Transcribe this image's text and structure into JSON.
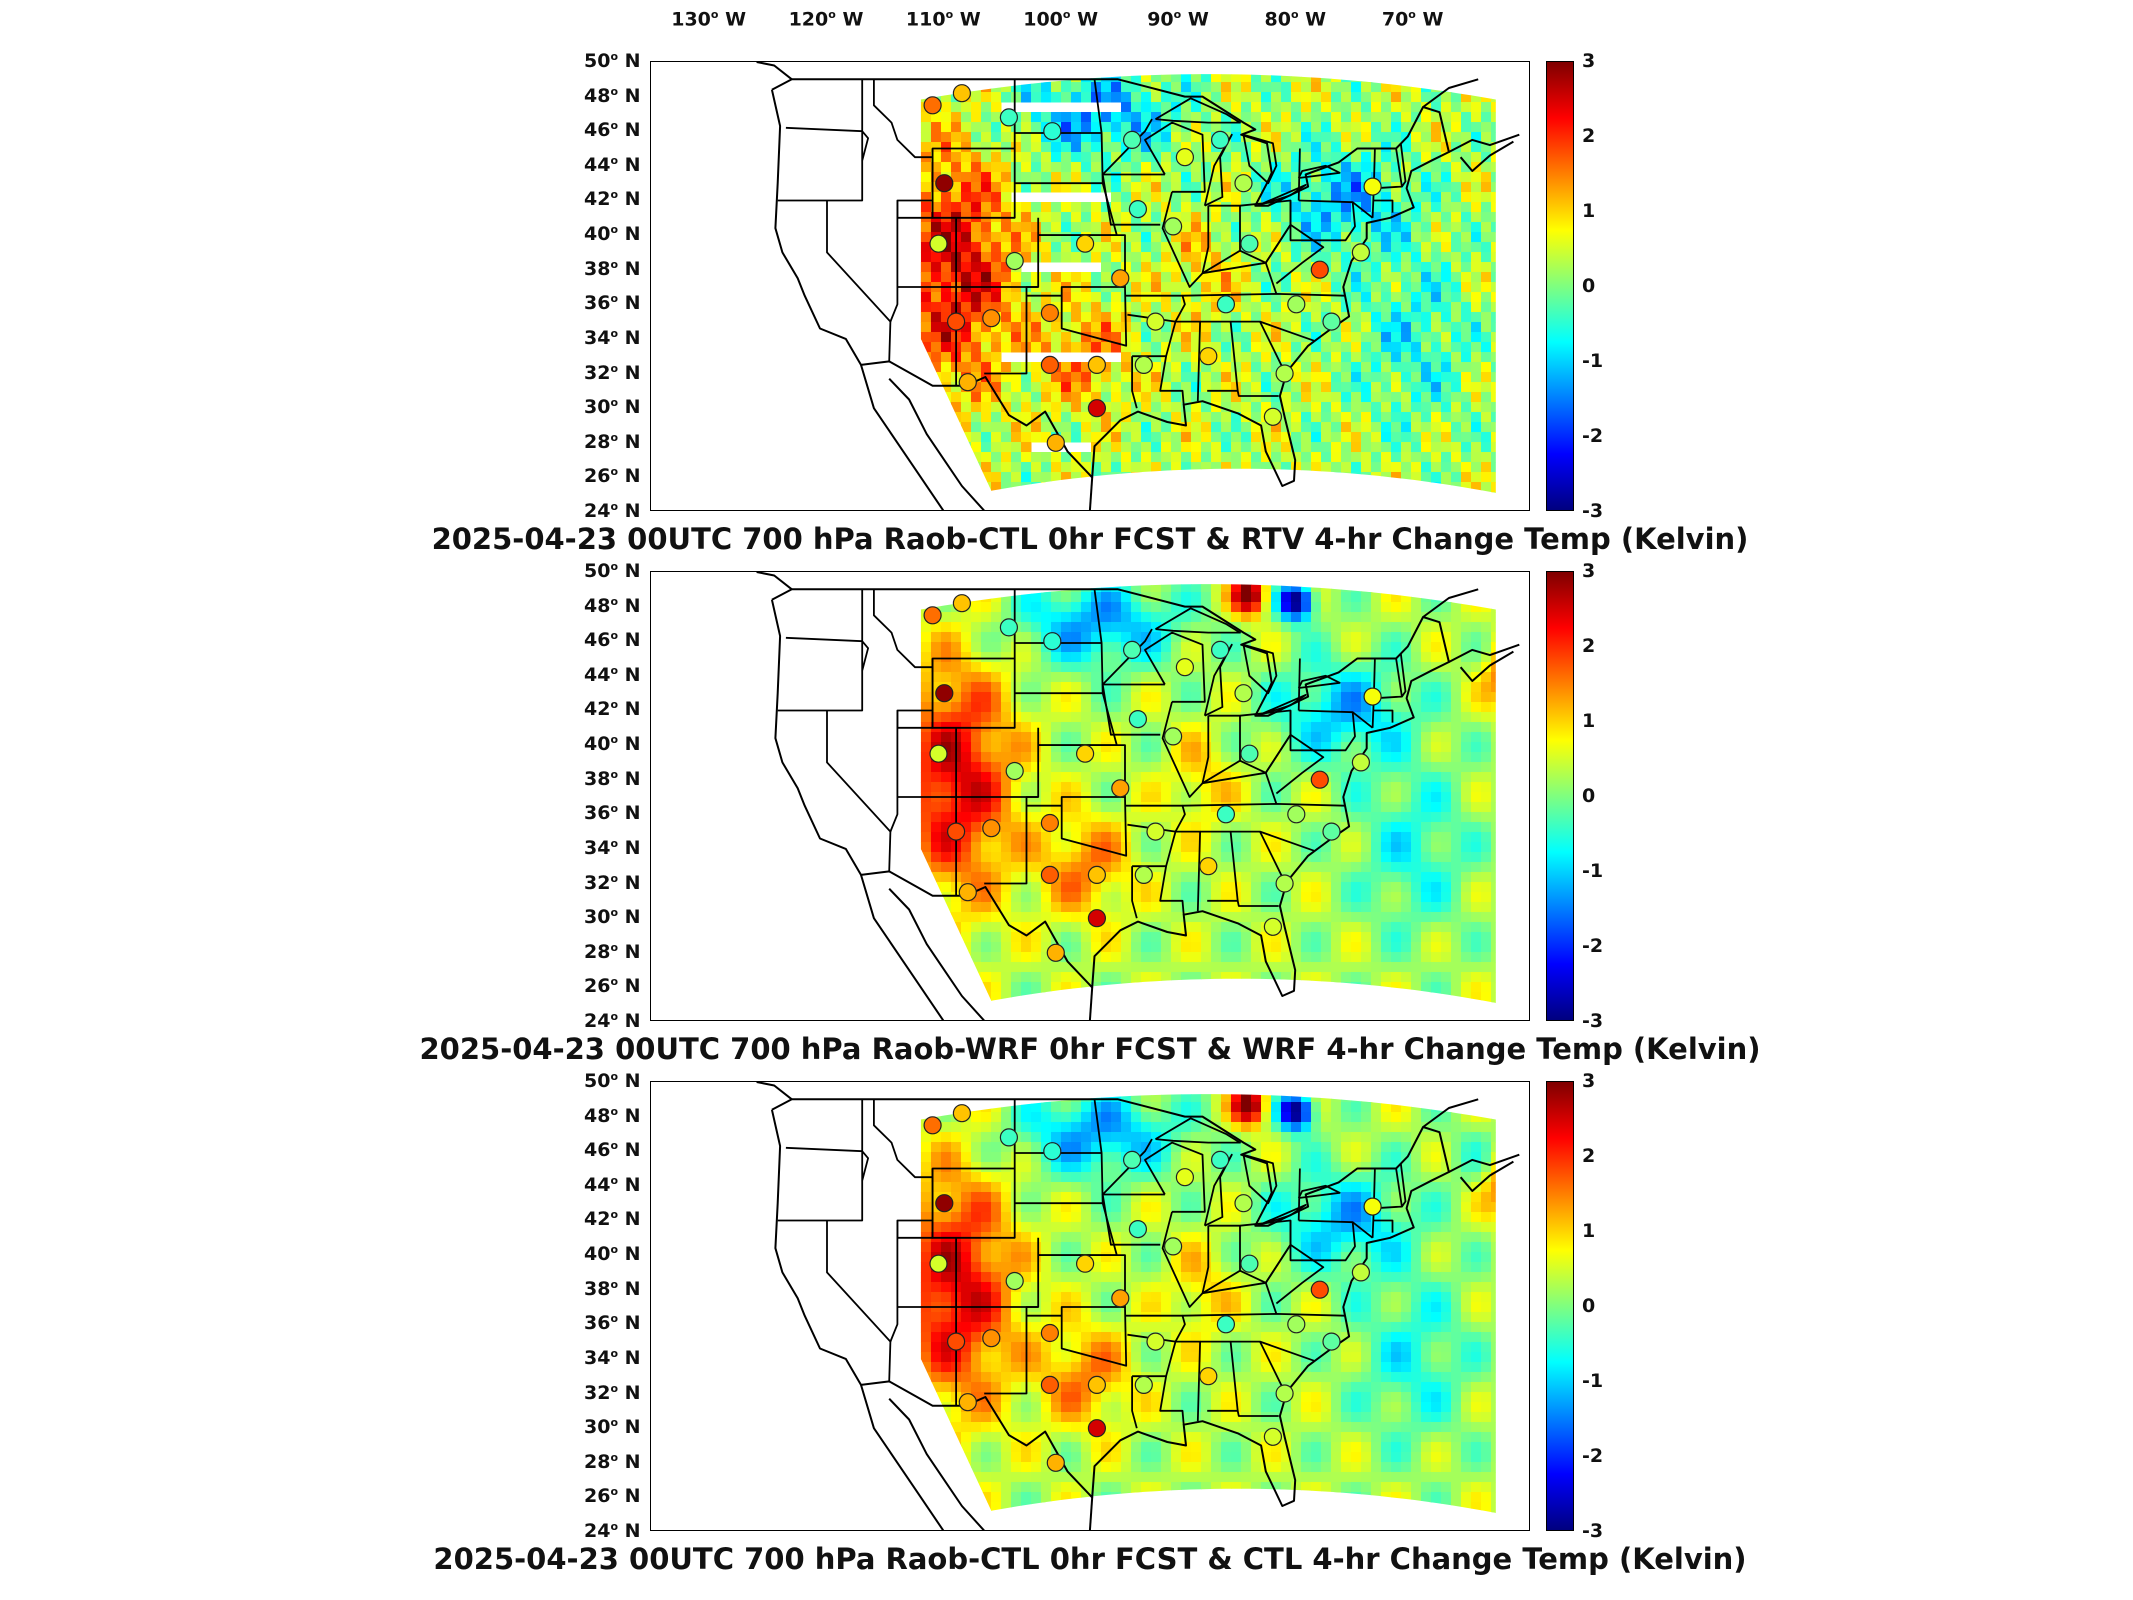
{
  "lon_labels": [
    {
      "value": "130",
      "hemi": "W"
    },
    {
      "value": "120",
      "hemi": "W"
    },
    {
      "value": "110",
      "hemi": "W"
    },
    {
      "value": "100",
      "hemi": "W"
    },
    {
      "value": "90",
      "hemi": "W"
    },
    {
      "value": "80",
      "hemi": "W"
    },
    {
      "value": "70",
      "hemi": "W"
    }
  ],
  "lat_labels": [
    {
      "value": "50",
      "hemi": "N"
    },
    {
      "value": "48",
      "hemi": "N"
    },
    {
      "value": "46",
      "hemi": "N"
    },
    {
      "value": "44",
      "hemi": "N"
    },
    {
      "value": "42",
      "hemi": "N"
    },
    {
      "value": "40",
      "hemi": "N"
    },
    {
      "value": "38",
      "hemi": "N"
    },
    {
      "value": "36",
      "hemi": "N"
    },
    {
      "value": "34",
      "hemi": "N"
    },
    {
      "value": "32",
      "hemi": "N"
    },
    {
      "value": "30",
      "hemi": "N"
    },
    {
      "value": "28",
      "hemi": "N"
    },
    {
      "value": "26",
      "hemi": "N"
    },
    {
      "value": "24",
      "hemi": "N"
    }
  ],
  "colorbar_ticks": [
    "3",
    "2",
    "1",
    "0",
    "-1",
    "-2",
    "-3"
  ],
  "colorbar_range": [
    -3,
    3
  ],
  "panels": [
    {
      "title": "2025-04-23 00UTC 700 hPa Raob-CTL 0hr FCST & RTV 4-hr Change Temp (Kelvin)",
      "field": "rtv"
    },
    {
      "title": "2025-04-23 00UTC 700 hPa Raob-WRF 0hr FCST & WRF 4-hr Change Temp (Kelvin)",
      "field": "wrf"
    },
    {
      "title": "2025-04-23 00UTC 700 hPa Raob-CTL 0hr FCST & CTL 4-hr Change Temp (Kelvin)",
      "field": "ctl"
    }
  ],
  "stations": [
    {
      "lon": -111.0,
      "lat": 47.5,
      "v": 1.6
    },
    {
      "lon": -108.5,
      "lat": 48.2,
      "v": 1.1
    },
    {
      "lon": -104.5,
      "lat": 46.8,
      "v": -0.4
    },
    {
      "lon": -100.8,
      "lat": 46.0,
      "v": -0.5
    },
    {
      "lon": -94.0,
      "lat": 45.5,
      "v": -0.3
    },
    {
      "lon": -89.5,
      "lat": 44.5,
      "v": 0.6
    },
    {
      "lon": -86.5,
      "lat": 45.5,
      "v": -0.4
    },
    {
      "lon": -84.5,
      "lat": 43.0,
      "v": 0.3
    },
    {
      "lon": -73.5,
      "lat": 42.8,
      "v": 0.7
    },
    {
      "lon": -110.0,
      "lat": 43.0,
      "v": 2.9
    },
    {
      "lon": -93.5,
      "lat": 41.5,
      "v": -0.4
    },
    {
      "lon": -90.5,
      "lat": 40.5,
      "v": 0.2
    },
    {
      "lon": -84.0,
      "lat": 39.5,
      "v": -0.3
    },
    {
      "lon": -78.0,
      "lat": 38.0,
      "v": 1.8
    },
    {
      "lon": -74.5,
      "lat": 39.0,
      "v": 0.4
    },
    {
      "lon": -110.5,
      "lat": 39.5,
      "v": 0.5
    },
    {
      "lon": -104.0,
      "lat": 38.5,
      "v": 0.2
    },
    {
      "lon": -98.0,
      "lat": 39.5,
      "v": 1.0
    },
    {
      "lon": -95.0,
      "lat": 37.5,
      "v": 1.3
    },
    {
      "lon": -109.0,
      "lat": 35.0,
      "v": 1.8
    },
    {
      "lon": -106.0,
      "lat": 35.2,
      "v": 1.4
    },
    {
      "lon": -101.0,
      "lat": 35.5,
      "v": 1.5
    },
    {
      "lon": -92.0,
      "lat": 35.0,
      "v": 0.5
    },
    {
      "lon": -86.0,
      "lat": 36.0,
      "v": -0.4
    },
    {
      "lon": -80.0,
      "lat": 36.0,
      "v": 0.2
    },
    {
      "lon": -101.0,
      "lat": 32.5,
      "v": 1.7
    },
    {
      "lon": -97.0,
      "lat": 32.5,
      "v": 1.1
    },
    {
      "lon": -93.0,
      "lat": 32.5,
      "v": 0.3
    },
    {
      "lon": -87.5,
      "lat": 33.0,
      "v": 1.0
    },
    {
      "lon": -81.0,
      "lat": 32.0,
      "v": 0.3
    },
    {
      "lon": -77.0,
      "lat": 35.0,
      "v": -0.2
    },
    {
      "lon": -108.0,
      "lat": 31.5,
      "v": 1.2
    },
    {
      "lon": -97.0,
      "lat": 30.0,
      "v": 2.5
    },
    {
      "lon": -82.0,
      "lat": 29.5,
      "v": 0.5
    },
    {
      "lon": -100.5,
      "lat": 28.0,
      "v": 1.2
    }
  ]
}
